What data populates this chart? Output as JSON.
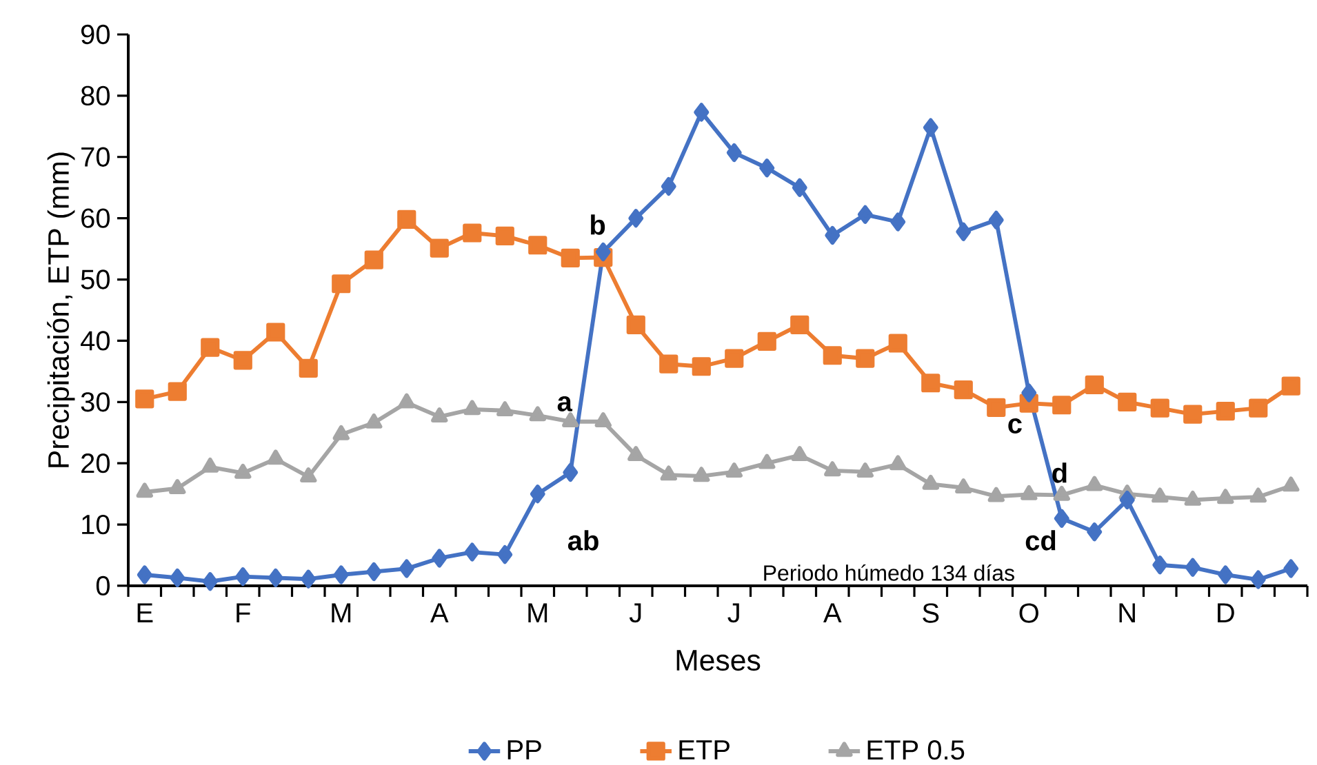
{
  "chart_data": {
    "type": "line",
    "xlabel": "Meses",
    "ylabel": "Precipitación, ETP (mm)",
    "categories": [
      "E",
      null,
      null,
      "F",
      null,
      null,
      "M",
      null,
      null,
      "A",
      null,
      null,
      "M",
      null,
      null,
      "J",
      null,
      null,
      "J",
      null,
      null,
      "A",
      null,
      null,
      "S",
      null,
      null,
      "O",
      null,
      null,
      "N",
      null,
      null,
      "D",
      null,
      null
    ],
    "ylim": [
      0,
      90
    ],
    "yticks": [
      0,
      10,
      20,
      30,
      40,
      50,
      60,
      70,
      80,
      90
    ],
    "series": [
      {
        "name": "PP",
        "color": "#4472c4",
        "marker": "diamond",
        "values": [
          1.8,
          1.3,
          0.7,
          1.5,
          1.3,
          1.1,
          1.8,
          2.3,
          2.8,
          4.5,
          5.5,
          5.1,
          15,
          18.5,
          54.5,
          60,
          65.2,
          77.3,
          70.7,
          68.2,
          65,
          57.2,
          60.6,
          59.4,
          74.8,
          57.8,
          59.7,
          31.5,
          11,
          8.8,
          14,
          3.4,
          3,
          1.8,
          1,
          2.8
        ]
      },
      {
        "name": "ETP",
        "color": "#ed7d31",
        "marker": "square",
        "values": [
          30.5,
          31.7,
          38.9,
          36.8,
          41.4,
          35.5,
          49.3,
          53.2,
          59.8,
          55.1,
          57.6,
          57.1,
          55.6,
          53.5,
          53.6,
          42.6,
          36.2,
          35.8,
          37.1,
          39.9,
          42.6,
          37.6,
          37.1,
          39.6,
          33.1,
          32,
          29.1,
          29.8,
          29.5,
          32.8,
          30,
          29,
          28,
          28.5,
          29,
          32.6
        ]
      },
      {
        "name": "ETP  0.5",
        "color": "#a5a5a5",
        "marker": "triangle",
        "values": [
          15.3,
          15.9,
          19.4,
          18.4,
          20.7,
          17.8,
          24.7,
          26.6,
          29.9,
          27.6,
          28.8,
          28.6,
          27.8,
          26.8,
          26.8,
          21.3,
          18.1,
          17.9,
          18.6,
          20,
          21.3,
          18.8,
          18.6,
          19.8,
          16.6,
          16,
          14.6,
          14.9,
          14.8,
          16.4,
          15,
          14.5,
          14,
          14.3,
          14.5,
          16.3
        ]
      }
    ],
    "annotations": [
      "a",
      "b",
      "ab",
      "c",
      "d",
      "cd",
      "Periodo húmedo 134 días"
    ],
    "legend": "bottom",
    "line_style": "solid"
  }
}
